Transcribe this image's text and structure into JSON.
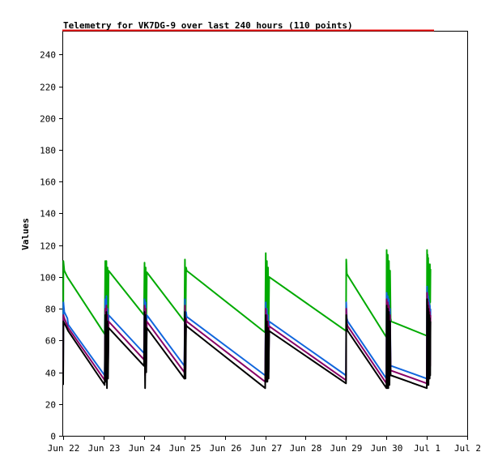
{
  "chart_data": {
    "type": "line",
    "title": "Telemetry for VK7DG-9 over last 240 hours (110 points)",
    "xlabel": "",
    "ylabel": "Values",
    "ylim": [
      0,
      255
    ],
    "yticks": [
      0,
      20,
      40,
      60,
      80,
      100,
      120,
      140,
      160,
      180,
      200,
      220,
      240
    ],
    "xlim": [
      "2024-06-22",
      "2024-07-02"
    ],
    "xticks": [
      {
        "date": "2024-06-22",
        "label": "Jun 22"
      },
      {
        "date": "2024-06-23",
        "label": "Jun 23"
      },
      {
        "date": "2024-06-24",
        "label": "Jun 24"
      },
      {
        "date": "2024-06-25",
        "label": "Jun 25"
      },
      {
        "date": "2024-06-26",
        "label": "Jun 26"
      },
      {
        "date": "2024-06-27",
        "label": "Jun 27"
      },
      {
        "date": "2024-06-28",
        "label": "Jun 28"
      },
      {
        "date": "2024-06-29",
        "label": "Jun 29"
      },
      {
        "date": "2024-06-30",
        "label": "Jun 30"
      },
      {
        "date": "2024-07-01",
        "label": "Jul 1"
      },
      {
        "date": "2024-07-02",
        "label": "Jul 2"
      }
    ],
    "grid": false,
    "legend": "none",
    "series": [
      {
        "color": "#00aa00",
        "points": [
          [
            "2024-06-22 00:00",
            35
          ],
          [
            "2024-06-22 00:10",
            110
          ],
          [
            "2024-06-22 00:40",
            104
          ],
          [
            "2024-06-22 02:30",
            100
          ],
          [
            "2024-06-23 00:40",
            64
          ],
          [
            "2024-06-23 01:00",
            110
          ],
          [
            "2024-06-23 01:20",
            66
          ],
          [
            "2024-06-23 01:40",
            110
          ],
          [
            "2024-06-23 02:00",
            55
          ],
          [
            "2024-06-23 02:20",
            106
          ],
          [
            "2024-06-23 02:40",
            62
          ],
          [
            "2024-06-23 03:00",
            104
          ],
          [
            "2024-06-24 00:00",
            76
          ],
          [
            "2024-06-24 00:20",
            109
          ],
          [
            "2024-06-24 00:40",
            58
          ],
          [
            "2024-06-24 01:00",
            106
          ],
          [
            "2024-06-24 01:20",
            62
          ],
          [
            "2024-06-24 01:40",
            103
          ],
          [
            "2024-06-25 00:00",
            72
          ],
          [
            "2024-06-25 00:20",
            111
          ],
          [
            "2024-06-25 00:40",
            66
          ],
          [
            "2024-06-25 01:00",
            106
          ],
          [
            "2024-06-25 01:20",
            104
          ],
          [
            "2024-06-27 00:00",
            65
          ],
          [
            "2024-06-27 00:20",
            115
          ],
          [
            "2024-06-27 00:40",
            65
          ],
          [
            "2024-06-27 01:00",
            110
          ],
          [
            "2024-06-27 01:20",
            64
          ],
          [
            "2024-06-27 01:40",
            106
          ],
          [
            "2024-06-27 02:00",
            66
          ],
          [
            "2024-06-27 02:20",
            100
          ],
          [
            "2024-06-29 00:00",
            66
          ],
          [
            "2024-06-29 00:10",
            111
          ],
          [
            "2024-06-29 00:30",
            102
          ],
          [
            "2024-06-29 01:00",
            101
          ],
          [
            "2024-06-30 00:00",
            62
          ],
          [
            "2024-06-30 00:10",
            117
          ],
          [
            "2024-06-30 00:30",
            60
          ],
          [
            "2024-06-30 00:50",
            114
          ],
          [
            "2024-06-30 01:10",
            58
          ],
          [
            "2024-06-30 01:30",
            110
          ],
          [
            "2024-06-30 01:50",
            64
          ],
          [
            "2024-06-30 02:10",
            104
          ],
          [
            "2024-06-30 02:30",
            74
          ],
          [
            "2024-06-30 02:50",
            72
          ],
          [
            "2024-07-01 00:00",
            63
          ],
          [
            "2024-07-01 00:10",
            117
          ],
          [
            "2024-07-01 00:20",
            70
          ],
          [
            "2024-07-01 00:30",
            114
          ],
          [
            "2024-07-01 00:40",
            72
          ],
          [
            "2024-07-01 00:50",
            112
          ],
          [
            "2024-07-01 01:00",
            70
          ],
          [
            "2024-07-01 01:10",
            108
          ],
          [
            "2024-07-01 01:20",
            80
          ],
          [
            "2024-07-01 01:30",
            106
          ],
          [
            "2024-07-01 01:40",
            78
          ],
          [
            "2024-07-01 01:50",
            108
          ],
          [
            "2024-07-01 02:00",
            84
          ],
          [
            "2024-07-01 02:10",
            105
          ]
        ]
      },
      {
        "color": "#1166dd",
        "points": [
          [
            "2024-06-22 00:00",
            42
          ],
          [
            "2024-06-22 00:10",
            84
          ],
          [
            "2024-06-22 00:40",
            78
          ],
          [
            "2024-06-22 02:30",
            74
          ],
          [
            "2024-06-22 03:00",
            70
          ],
          [
            "2024-06-23 00:40",
            38
          ],
          [
            "2024-06-23 01:00",
            86
          ],
          [
            "2024-06-23 01:20",
            42
          ],
          [
            "2024-06-23 01:40",
            88
          ],
          [
            "2024-06-23 02:00",
            40
          ],
          [
            "2024-06-23 02:20",
            80
          ],
          [
            "2024-06-23 02:40",
            42
          ],
          [
            "2024-06-23 03:00",
            76
          ],
          [
            "2024-06-24 00:00",
            52
          ],
          [
            "2024-06-24 00:20",
            86
          ],
          [
            "2024-06-24 00:40",
            42
          ],
          [
            "2024-06-24 01:00",
            84
          ],
          [
            "2024-06-24 01:20",
            48
          ],
          [
            "2024-06-24 01:40",
            76
          ],
          [
            "2024-06-25 00:00",
            44
          ],
          [
            "2024-06-25 00:20",
            86
          ],
          [
            "2024-06-25 00:40",
            46
          ],
          [
            "2024-06-25 01:00",
            78
          ],
          [
            "2024-06-25 01:20",
            75
          ],
          [
            "2024-06-27 00:00",
            38
          ],
          [
            "2024-06-27 00:20",
            84
          ],
          [
            "2024-06-27 00:40",
            40
          ],
          [
            "2024-06-27 01:00",
            80
          ],
          [
            "2024-06-27 01:20",
            40
          ],
          [
            "2024-06-27 01:40",
            76
          ],
          [
            "2024-06-27 02:00",
            42
          ],
          [
            "2024-06-27 02:20",
            72
          ],
          [
            "2024-06-29 00:00",
            38
          ],
          [
            "2024-06-29 00:10",
            84
          ],
          [
            "2024-06-29 00:30",
            74
          ],
          [
            "2024-06-29 01:00",
            72
          ],
          [
            "2024-06-30 00:00",
            36
          ],
          [
            "2024-06-30 00:10",
            90
          ],
          [
            "2024-06-30 00:30",
            36
          ],
          [
            "2024-06-30 00:50",
            88
          ],
          [
            "2024-06-30 01:10",
            34
          ],
          [
            "2024-06-30 01:30",
            86
          ],
          [
            "2024-06-30 01:50",
            38
          ],
          [
            "2024-06-30 02:10",
            80
          ],
          [
            "2024-06-30 02:30",
            44
          ],
          [
            "2024-06-30 02:50",
            44
          ],
          [
            "2024-07-01 00:00",
            36
          ],
          [
            "2024-07-01 00:10",
            94
          ],
          [
            "2024-07-01 00:20",
            40
          ],
          [
            "2024-07-01 00:30",
            90
          ],
          [
            "2024-07-01 00:40",
            40
          ],
          [
            "2024-07-01 00:50",
            88
          ],
          [
            "2024-07-01 01:00",
            38
          ],
          [
            "2024-07-01 01:10",
            86
          ],
          [
            "2024-07-01 01:20",
            46
          ],
          [
            "2024-07-01 01:30",
            84
          ],
          [
            "2024-07-01 01:40",
            44
          ],
          [
            "2024-07-01 01:50",
            82
          ],
          [
            "2024-07-01 02:00",
            48
          ],
          [
            "2024-07-01 02:10",
            80
          ]
        ]
      },
      {
        "color": "#880066",
        "points": [
          [
            "2024-06-22 00:00",
            38
          ],
          [
            "2024-06-22 00:10",
            76
          ],
          [
            "2024-06-22 00:40",
            74
          ],
          [
            "2024-06-22 03:00",
            68
          ],
          [
            "2024-06-23 00:40",
            35
          ],
          [
            "2024-06-23 01:00",
            80
          ],
          [
            "2024-06-23 01:20",
            38
          ],
          [
            "2024-06-23 01:40",
            82
          ],
          [
            "2024-06-23 02:00",
            38
          ],
          [
            "2024-06-23 02:20",
            76
          ],
          [
            "2024-06-23 02:40",
            40
          ],
          [
            "2024-06-23 03:00",
            72
          ],
          [
            "2024-06-24 00:00",
            48
          ],
          [
            "2024-06-24 00:20",
            82
          ],
          [
            "2024-06-24 00:40",
            38
          ],
          [
            "2024-06-24 01:00",
            80
          ],
          [
            "2024-06-24 01:20",
            44
          ],
          [
            "2024-06-24 01:40",
            72
          ],
          [
            "2024-06-25 00:00",
            40
          ],
          [
            "2024-06-25 00:20",
            82
          ],
          [
            "2024-06-25 00:40",
            42
          ],
          [
            "2024-06-25 01:00",
            74
          ],
          [
            "2024-06-25 01:20",
            72
          ],
          [
            "2024-06-27 00:00",
            34
          ],
          [
            "2024-06-27 00:20",
            80
          ],
          [
            "2024-06-27 00:40",
            38
          ],
          [
            "2024-06-27 01:00",
            76
          ],
          [
            "2024-06-27 01:20",
            38
          ],
          [
            "2024-06-27 01:40",
            72
          ],
          [
            "2024-06-27 02:00",
            40
          ],
          [
            "2024-06-27 02:20",
            69
          ],
          [
            "2024-06-29 00:00",
            35
          ],
          [
            "2024-06-29 00:10",
            80
          ],
          [
            "2024-06-29 00:30",
            71
          ],
          [
            "2024-06-29 01:00",
            69
          ],
          [
            "2024-06-30 00:00",
            33
          ],
          [
            "2024-06-30 00:10",
            86
          ],
          [
            "2024-06-30 00:30",
            34
          ],
          [
            "2024-06-30 00:50",
            84
          ],
          [
            "2024-06-30 01:10",
            32
          ],
          [
            "2024-06-30 01:30",
            82
          ],
          [
            "2024-06-30 01:50",
            36
          ],
          [
            "2024-06-30 02:10",
            76
          ],
          [
            "2024-06-30 02:30",
            41
          ],
          [
            "2024-06-30 02:50",
            41
          ],
          [
            "2024-07-01 00:00",
            33
          ],
          [
            "2024-07-01 00:10",
            90
          ],
          [
            "2024-07-01 00:20",
            38
          ],
          [
            "2024-07-01 00:30",
            86
          ],
          [
            "2024-07-01 00:40",
            38
          ],
          [
            "2024-07-01 00:50",
            84
          ],
          [
            "2024-07-01 01:00",
            36
          ],
          [
            "2024-07-01 01:10",
            82
          ],
          [
            "2024-07-01 01:20",
            42
          ],
          [
            "2024-07-01 01:30",
            80
          ],
          [
            "2024-07-01 01:40",
            42
          ],
          [
            "2024-07-01 01:50",
            78
          ],
          [
            "2024-07-01 02:00",
            44
          ],
          [
            "2024-07-01 02:10",
            76
          ]
        ]
      },
      {
        "color": "#000000",
        "points": [
          [
            "2024-06-22 00:00",
            32
          ],
          [
            "2024-06-22 00:10",
            72
          ],
          [
            "2024-06-22 00:40",
            71
          ],
          [
            "2024-06-22 03:00",
            66
          ],
          [
            "2024-06-23 00:40",
            32
          ],
          [
            "2024-06-23 01:00",
            76
          ],
          [
            "2024-06-23 01:20",
            34
          ],
          [
            "2024-06-23 01:40",
            78
          ],
          [
            "2024-06-23 02:00",
            30
          ],
          [
            "2024-06-23 02:20",
            72
          ],
          [
            "2024-06-23 02:40",
            36
          ],
          [
            "2024-06-23 03:00",
            68
          ],
          [
            "2024-06-24 00:00",
            44
          ],
          [
            "2024-06-24 00:20",
            78
          ],
          [
            "2024-06-24 00:40",
            30
          ],
          [
            "2024-06-24 01:00",
            76
          ],
          [
            "2024-06-24 01:20",
            40
          ],
          [
            "2024-06-24 01:40",
            68
          ],
          [
            "2024-06-25 00:00",
            36
          ],
          [
            "2024-06-25 00:20",
            78
          ],
          [
            "2024-06-25 00:40",
            36
          ],
          [
            "2024-06-25 01:00",
            70
          ],
          [
            "2024-06-25 01:20",
            69
          ],
          [
            "2024-06-27 00:00",
            30
          ],
          [
            "2024-06-27 00:20",
            76
          ],
          [
            "2024-06-27 00:40",
            34
          ],
          [
            "2024-06-27 01:00",
            72
          ],
          [
            "2024-06-27 01:20",
            34
          ],
          [
            "2024-06-27 01:40",
            68
          ],
          [
            "2024-06-27 02:00",
            36
          ],
          [
            "2024-06-27 02:20",
            66
          ],
          [
            "2024-06-29 00:00",
            33
          ],
          [
            "2024-06-29 00:10",
            76
          ],
          [
            "2024-06-29 00:30",
            68
          ],
          [
            "2024-06-29 01:00",
            66
          ],
          [
            "2024-06-30 00:00",
            30
          ],
          [
            "2024-06-30 00:10",
            82
          ],
          [
            "2024-06-30 00:30",
            30
          ],
          [
            "2024-06-30 00:50",
            80
          ],
          [
            "2024-06-30 01:10",
            30
          ],
          [
            "2024-06-30 01:30",
            78
          ],
          [
            "2024-06-30 01:50",
            32
          ],
          [
            "2024-06-30 02:10",
            72
          ],
          [
            "2024-06-30 02:30",
            38
          ],
          [
            "2024-06-30 02:50",
            38
          ],
          [
            "2024-07-01 00:00",
            30
          ],
          [
            "2024-07-01 00:10",
            86
          ],
          [
            "2024-07-01 00:20",
            32
          ],
          [
            "2024-07-01 00:30",
            82
          ],
          [
            "2024-07-01 00:40",
            32
          ],
          [
            "2024-07-01 00:50",
            80
          ],
          [
            "2024-07-01 01:00",
            32
          ],
          [
            "2024-07-01 01:10",
            78
          ],
          [
            "2024-07-01 01:20",
            36
          ],
          [
            "2024-07-01 01:30",
            76
          ],
          [
            "2024-07-01 01:40",
            36
          ],
          [
            "2024-07-01 01:50",
            74
          ],
          [
            "2024-07-01 02:00",
            38
          ],
          [
            "2024-07-01 02:10",
            72
          ]
        ]
      }
    ]
  },
  "colors": {
    "title_underline": "#ee1111",
    "axis": "#000000",
    "background": "#ffffff"
  }
}
